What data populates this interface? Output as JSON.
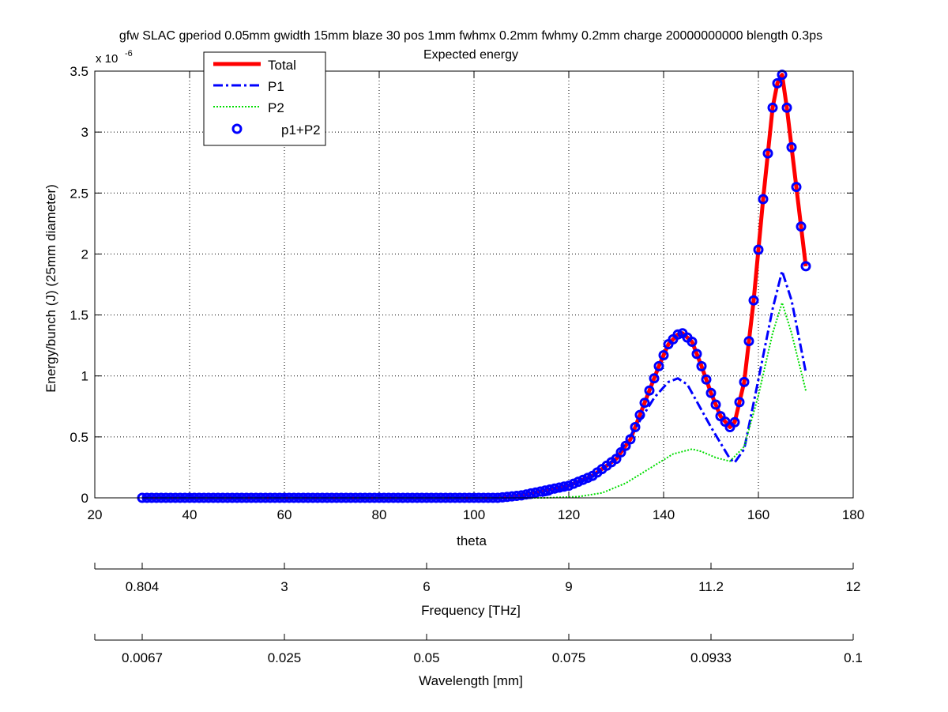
{
  "chart_data": {
    "type": "line",
    "title": "gfw SLAC gperiod 0.05mm gwidth 15mm blaze 30 pos 1mm fwhmx 0.2mm fwhmy 0.2mm charge 20000000000 blength 0.3ps",
    "subtitle": "Expected energy",
    "xlabel": "theta",
    "ylabel": "Energy/bunch (J) (25mm diameter)",
    "y_exponent_label": "x 10",
    "y_exponent_power": "-6",
    "y_scale": 1e-06,
    "xlim": [
      20,
      180
    ],
    "ylim": [
      0,
      3.5
    ],
    "grid": true,
    "x_ticks": [
      "20",
      "40",
      "60",
      "80",
      "100",
      "120",
      "140",
      "160",
      "180"
    ],
    "y_ticks": [
      "0",
      "0.5",
      "1",
      "1.5",
      "2",
      "2.5",
      "3",
      "3.5"
    ],
    "legend": {
      "placement": "top-left",
      "entries": [
        "Total",
        "P1",
        "P2",
        "p1+P2"
      ]
    },
    "colors": {
      "total": "#ff0000",
      "p1": "#0000ff",
      "p2": "#00dd00",
      "sum": "#0000ff"
    },
    "total_knots": {
      "x": [
        30,
        105,
        110,
        115,
        120,
        125,
        130,
        133,
        136,
        139,
        141,
        143,
        144,
        146,
        148,
        150,
        152,
        154,
        155,
        157,
        159,
        161,
        163,
        164,
        165,
        166,
        168,
        170
      ],
      "y": [
        0,
        0,
        0.02,
        0.06,
        0.1,
        0.18,
        0.32,
        0.48,
        0.78,
        1.08,
        1.26,
        1.34,
        1.35,
        1.28,
        1.08,
        0.86,
        0.67,
        0.58,
        0.62,
        0.95,
        1.62,
        2.45,
        3.2,
        3.4,
        3.47,
        3.2,
        2.55,
        1.9
      ]
    },
    "p1_knots": {
      "x": [
        30,
        112,
        116,
        120,
        125,
        130,
        134,
        138,
        141,
        143,
        145,
        148,
        150,
        152,
        154,
        155,
        157,
        160,
        163,
        165,
        167,
        170
      ],
      "y": [
        0,
        0,
        0.03,
        0.09,
        0.17,
        0.33,
        0.57,
        0.82,
        0.95,
        0.98,
        0.93,
        0.72,
        0.58,
        0.45,
        0.32,
        0.29,
        0.4,
        0.97,
        1.55,
        1.86,
        1.62,
        1.03
      ]
    },
    "p2_knots": {
      "x": [
        30,
        115,
        122,
        127,
        132,
        137,
        142,
        146,
        148,
        151,
        154,
        157,
        160,
        163,
        165,
        167,
        170
      ],
      "y": [
        0,
        0,
        0.01,
        0.04,
        0.12,
        0.24,
        0.36,
        0.4,
        0.38,
        0.33,
        0.3,
        0.42,
        0.84,
        1.35,
        1.6,
        1.35,
        0.88
      ]
    },
    "sum_marker_x": [
      30,
      31,
      32,
      33,
      34,
      35,
      36,
      37,
      38,
      39,
      40,
      41,
      42,
      43,
      44,
      45,
      46,
      47,
      48,
      49,
      50,
      51,
      52,
      53,
      54,
      55,
      56,
      57,
      58,
      59,
      60,
      61,
      62,
      63,
      64,
      65,
      66,
      67,
      68,
      69,
      70,
      71,
      72,
      73,
      74,
      75,
      76,
      77,
      78,
      79,
      80,
      81,
      82,
      83,
      84,
      85,
      86,
      87,
      88,
      89,
      90,
      91,
      92,
      93,
      94,
      95,
      96,
      97,
      98,
      99,
      100,
      101,
      102,
      103,
      104,
      105,
      106,
      107,
      108,
      109,
      110,
      111,
      112,
      113,
      114,
      115,
      116,
      117,
      118,
      119,
      120,
      121,
      122,
      123,
      124,
      125,
      126,
      127,
      128,
      129,
      130,
      131,
      132,
      133,
      134,
      135,
      136,
      137,
      138,
      139,
      140,
      141,
      142,
      143,
      144,
      145,
      146,
      147,
      148,
      149,
      150,
      151,
      152,
      153,
      154,
      155,
      156,
      157,
      158,
      159,
      160,
      161,
      162,
      163,
      164,
      165,
      166,
      167,
      168,
      169,
      170
    ],
    "secondary_axes": [
      {
        "label": "Frequency [THz]",
        "ticks": [
          {
            "theta": 30,
            "label": "0.804"
          },
          {
            "theta": 60,
            "label": "3"
          },
          {
            "theta": 90,
            "label": "6"
          },
          {
            "theta": 120,
            "label": "9"
          },
          {
            "theta": 150,
            "label": "11.2"
          },
          {
            "theta": 180,
            "label": "12"
          }
        ]
      },
      {
        "label": "Wavelength [mm]",
        "ticks": [
          {
            "theta": 30,
            "label": "0.0067"
          },
          {
            "theta": 60,
            "label": "0.025"
          },
          {
            "theta": 90,
            "label": "0.05"
          },
          {
            "theta": 120,
            "label": "0.075"
          },
          {
            "theta": 150,
            "label": "0.0933"
          },
          {
            "theta": 180,
            "label": "0.1"
          }
        ]
      }
    ]
  }
}
